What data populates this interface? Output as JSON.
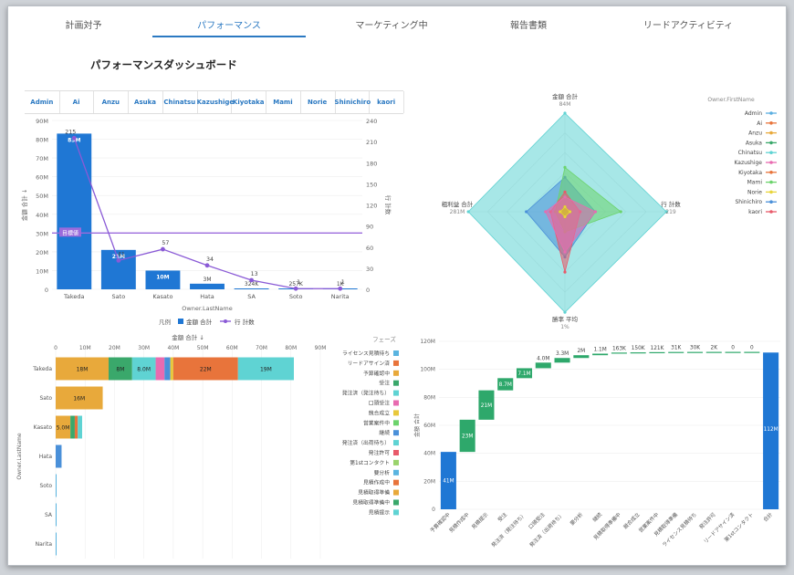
{
  "tabs": [
    {
      "label": "計画対予",
      "active": false
    },
    {
      "label": "パフォーマンス",
      "active": true
    },
    {
      "label": "マーケティング中",
      "active": false
    },
    {
      "label": "報告書類",
      "active": false
    },
    {
      "label": "リードアクティビティ",
      "active": false
    }
  ],
  "dashboard_title": "パフォーマンスダッシュボード",
  "owner_filter": [
    "Admin",
    "Ai",
    "Anzu",
    "Asuka",
    "Chinatsu",
    "Kazushige",
    "Kiyotaka",
    "Mami",
    "Norie",
    "Shinichiro",
    "kaori"
  ],
  "colors": {
    "bar": "#1f77d4",
    "line": "#8a5ad6",
    "target": "#9b6bdc",
    "teal": "#5fd3d3"
  },
  "chart_data": [
    {
      "type": "bar",
      "title": "",
      "categories": [
        "Takeda",
        "Sato",
        "Kasato",
        "Hata",
        "SA",
        "Soto",
        "Narita"
      ],
      "series": [
        {
          "name": "金額 合計",
          "values": [
            83,
            21,
            10,
            3,
            0.324,
            0.257,
            0.001
          ],
          "labels": [
            "83M",
            "21M",
            "10M",
            "3M",
            "324K",
            "257K",
            "1K"
          ]
        },
        {
          "name": "行 計数",
          "values": [
            215,
            41,
            57,
            34,
            13,
            1,
            1
          ]
        }
      ],
      "target": {
        "label": "目標値",
        "value": 30
      },
      "xlabel": "Owner.LastName",
      "ylabel": "金額 合計 ↓",
      "y2label": "行 計数",
      "ylim": [
        0,
        90
      ],
      "y2lim": [
        0,
        240
      ],
      "yticks": [
        "0",
        "10M",
        "20M",
        "30M",
        "40M",
        "50M",
        "60M",
        "70M",
        "80M",
        "90M"
      ],
      "y2ticks": [
        "0",
        "30",
        "60",
        "90",
        "120",
        "150",
        "180",
        "210",
        "240"
      ],
      "legend_title": "凡例",
      "legend": [
        "金額 合計",
        "行 計数"
      ]
    },
    {
      "type": "radar",
      "axes": [
        {
          "label": "金額 合計",
          "max_label": "84M"
        },
        {
          "label": "行 計数",
          "max_label": "219"
        },
        {
          "label": "勝率 平均",
          "max_label": "1%"
        },
        {
          "label": "粗利益 合計",
          "max_label": "281M"
        }
      ],
      "legend_title": "Owner.FirstName",
      "series": [
        {
          "name": "Admin",
          "color": "#5aaee0",
          "values": [
            0.05,
            0.05,
            0.05,
            0.05
          ]
        },
        {
          "name": "Ai",
          "color": "#e8743b",
          "values": [
            0.05,
            0.05,
            0.05,
            0.05
          ]
        },
        {
          "name": "Anzu",
          "color": "#e8a93b",
          "values": [
            0.05,
            0.05,
            0.05,
            0.05
          ]
        },
        {
          "name": "Asuka",
          "color": "#3aa86b",
          "values": [
            0.05,
            0.05,
            0.05,
            0.05
          ]
        },
        {
          "name": "Chinatsu",
          "color": "#5fd3d3",
          "values": [
            1.0,
            1.0,
            1.0,
            1.0
          ]
        },
        {
          "name": "Kazushige",
          "color": "#e86bb0",
          "values": [
            0.15,
            0.3,
            0.4,
            0.2
          ]
        },
        {
          "name": "Kiyotaka",
          "color": "#e8743b",
          "values": [
            0.05,
            0.05,
            0.05,
            0.05
          ]
        },
        {
          "name": "Mami",
          "color": "#6cd36c",
          "values": [
            0.45,
            0.55,
            0.2,
            0.1
          ]
        },
        {
          "name": "Norie",
          "color": "#e8d43b",
          "values": [
            0.05,
            0.05,
            0.05,
            0.05
          ]
        },
        {
          "name": "Shinichiro",
          "color": "#4a90d9",
          "values": [
            0.35,
            0.3,
            0.45,
            0.4
          ]
        },
        {
          "name": "kaori",
          "color": "#e85a6a",
          "values": [
            0.2,
            0.15,
            0.6,
            0.15
          ]
        }
      ]
    },
    {
      "type": "stacked-bar-horizontal",
      "xlabel_top": "金額 合計 ↓",
      "ylabel": "Owner.LastName",
      "xticks": [
        "0",
        "10M",
        "20M",
        "30M",
        "40M",
        "50M",
        "60M",
        "70M",
        "80M",
        "90M"
      ],
      "xlim": [
        0,
        90
      ],
      "categories": [
        "Takeda",
        "Sato",
        "Kasato",
        "Hata",
        "Soto",
        "SA",
        "Narita"
      ],
      "legend_title": "フェーズ",
      "phases": [
        {
          "name": "ライセンス見積待ち",
          "color": "#5ab4e0"
        },
        {
          "name": "リードアサイン済",
          "color": "#e8743b"
        },
        {
          "name": "予算確認中",
          "color": "#e8a93b"
        },
        {
          "name": "受注",
          "color": "#3aa86b"
        },
        {
          "name": "発注済（発注待ち）",
          "color": "#5fd3d3"
        },
        {
          "name": "口頭受注",
          "color": "#e86bb0"
        },
        {
          "name": "競合成立",
          "color": "#e8c83b"
        },
        {
          "name": "営業案件中",
          "color": "#6cd36c"
        },
        {
          "name": "継続",
          "color": "#4a90d9"
        },
        {
          "name": "発注済（出荷待ち）",
          "color": "#5fd3d3"
        },
        {
          "name": "発注許可",
          "color": "#e85a6a"
        },
        {
          "name": "第1stコンタクト",
          "color": "#9ad36c"
        },
        {
          "name": "要分析",
          "color": "#5ab4e0"
        },
        {
          "name": "見積作成中",
          "color": "#e8743b"
        },
        {
          "name": "見積取得準備",
          "color": "#e8a93b"
        },
        {
          "name": "見積取得準備中",
          "color": "#3aa86b"
        },
        {
          "name": "見積提示",
          "color": "#5fd3d3"
        }
      ],
      "rows": [
        {
          "name": "Takeda",
          "segments": [
            {
              "phase": "予算確認中",
              "value": 18,
              "label": "18M"
            },
            {
              "phase": "受注",
              "value": 8,
              "label": "8M"
            },
            {
              "phase": "発注済（発注待ち）",
              "value": 8,
              "label": "8.0M"
            },
            {
              "phase": "口頭受注",
              "value": 3
            },
            {
              "phase": "継続",
              "value": 2
            },
            {
              "phase": "競合成立",
              "value": 1
            },
            {
              "phase": "見積作成中",
              "value": 22,
              "label": "22M"
            },
            {
              "phase": "見積提示",
              "value": 19,
              "label": "19M"
            }
          ]
        },
        {
          "name": "Sato",
          "segments": [
            {
              "phase": "予算確認中",
              "value": 16,
              "label": "16M"
            }
          ]
        },
        {
          "name": "Kasato",
          "segments": [
            {
              "phase": "予算確認中",
              "value": 5,
              "label": "5.0M"
            },
            {
              "phase": "受注",
              "value": 1.5
            },
            {
              "phase": "リードアサイン済",
              "value": 1
            },
            {
              "phase": "見積提示",
              "value": 1.5
            }
          ]
        },
        {
          "name": "Hata",
          "segments": [
            {
              "phase": "継続",
              "value": 2
            }
          ]
        },
        {
          "name": "Soto",
          "segments": [
            {
              "phase": "要分析",
              "value": 0.3
            }
          ]
        },
        {
          "name": "SA",
          "segments": [
            {
              "phase": "要分析",
              "value": 0.2
            }
          ]
        },
        {
          "name": "Narita",
          "segments": [
            {
              "phase": "要分析",
              "value": 0.05
            }
          ]
        }
      ]
    },
    {
      "type": "waterfall",
      "ylabel": "金額 合計",
      "ylim": [
        0,
        120
      ],
      "yticks": [
        "0",
        "20M",
        "40M",
        "60M",
        "80M",
        "100M",
        "120M"
      ],
      "steps": [
        {
          "name": "予算確認中",
          "value": 41,
          "label": "41M"
        },
        {
          "name": "見積作成中",
          "value": 23,
          "label": "23M"
        },
        {
          "name": "見積提示",
          "value": 21,
          "label": "21M"
        },
        {
          "name": "受注",
          "value": 8.7,
          "label": "8.7M"
        },
        {
          "name": "発注済（発注待ち）",
          "value": 7.1,
          "label": "7.1M"
        },
        {
          "name": "口頭受注",
          "value": 4.0,
          "label": "4.0M"
        },
        {
          "name": "発注済（出荷待ち）",
          "value": 3.3,
          "label": "3.3M"
        },
        {
          "name": "要分析",
          "value": 2.0,
          "label": "2M"
        },
        {
          "name": "継続",
          "value": 1.1,
          "label": "1.1M"
        },
        {
          "name": "見積取得準備中",
          "value": 0.163,
          "label": "163K"
        },
        {
          "name": "競合成立",
          "value": 0.15,
          "label": "150K"
        },
        {
          "name": "営業案件中",
          "value": 0.121,
          "label": "121K"
        },
        {
          "name": "見積取得準備",
          "value": 0.031,
          "label": "31K"
        },
        {
          "name": "ライセンス見積待ち",
          "value": 0.03,
          "label": "30K"
        },
        {
          "name": "発注許可",
          "value": 0.002,
          "label": "2K"
        },
        {
          "name": "リードアサイン済",
          "value": 0,
          "label": "0"
        },
        {
          "name": "第1stコンタクト",
          "value": 0,
          "label": "0"
        }
      ],
      "total": {
        "name": "合計",
        "value": 112,
        "label": "112M"
      }
    }
  ]
}
